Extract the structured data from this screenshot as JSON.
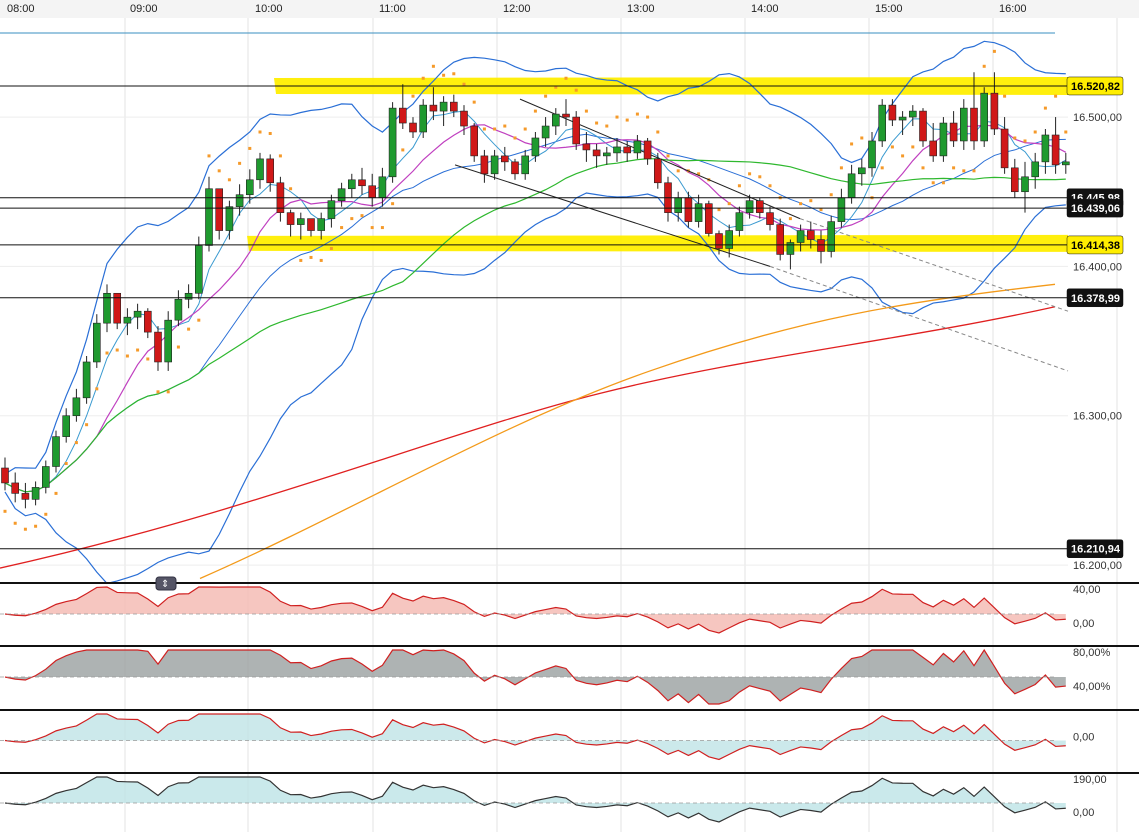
{
  "chart_data": [
    {
      "type": "candlestick",
      "x_ticks": [
        "08:00",
        "09:00",
        "10:00",
        "11:00",
        "12:00",
        "13:00",
        "14:00",
        "15:00",
        "16:00"
      ],
      "ylim": [
        16190,
        16565
      ],
      "y_ticks": [
        {
          "value": 16500,
          "label": "16.500,00"
        },
        {
          "value": 16400,
          "label": "16.400,00"
        },
        {
          "value": 16300,
          "label": "16.300,00"
        },
        {
          "value": 16200,
          "label": "16.200,00"
        }
      ],
      "level_badges": [
        {
          "value": 16520.82,
          "label": "16.520,82",
          "highlight": true
        },
        {
          "value": 16445.98,
          "label": "16.445,98",
          "highlight": false
        },
        {
          "value": 16439.06,
          "label": "16.439,06",
          "highlight": false
        },
        {
          "value": 16414.38,
          "label": "16.414,38",
          "highlight": true
        },
        {
          "value": 16378.99,
          "label": "16.378,99",
          "highlight": false
        },
        {
          "value": 16210.94,
          "label": "16.210,94",
          "highlight": false
        }
      ],
      "candles": [
        [
          16265,
          16272,
          16250,
          16255
        ],
        [
          16255,
          16262,
          16242,
          16248
        ],
        [
          16248,
          16255,
          16238,
          16244
        ],
        [
          16244,
          16256,
          16240,
          16252
        ],
        [
          16252,
          16270,
          16248,
          16266
        ],
        [
          16266,
          16290,
          16262,
          16286
        ],
        [
          16286,
          16305,
          16282,
          16300
        ],
        [
          16300,
          16318,
          16296,
          16312
        ],
        [
          16312,
          16340,
          16308,
          16336
        ],
        [
          16336,
          16368,
          16332,
          16362
        ],
        [
          16362,
          16388,
          16356,
          16382
        ],
        [
          16382,
          16380,
          16358,
          16362
        ],
        [
          16362,
          16372,
          16354,
          16366
        ],
        [
          16366,
          16375,
          16358,
          16370
        ],
        [
          16370,
          16372,
          16352,
          16356
        ],
        [
          16356,
          16360,
          16330,
          16336
        ],
        [
          16336,
          16370,
          16330,
          16364
        ],
        [
          16364,
          16384,
          16360,
          16378
        ],
        [
          16378,
          16388,
          16372,
          16382
        ],
        [
          16382,
          16420,
          16378,
          16414
        ],
        [
          16414,
          16460,
          16410,
          16452
        ],
        [
          16452,
          16450,
          16418,
          16424
        ],
        [
          16424,
          16444,
          16418,
          16440
        ],
        [
          16440,
          16455,
          16434,
          16448
        ],
        [
          16448,
          16465,
          16442,
          16458
        ],
        [
          16458,
          16476,
          16452,
          16472
        ],
        [
          16472,
          16475,
          16450,
          16456
        ],
        [
          16456,
          16460,
          16430,
          16436
        ],
        [
          16436,
          16438,
          16420,
          16428
        ],
        [
          16428,
          16436,
          16418,
          16432
        ],
        [
          16432,
          16430,
          16420,
          16424
        ],
        [
          16424,
          16436,
          16418,
          16432
        ],
        [
          16432,
          16448,
          16426,
          16444
        ],
        [
          16444,
          16456,
          16440,
          16452
        ],
        [
          16452,
          16462,
          16446,
          16458
        ],
        [
          16458,
          16466,
          16448,
          16454
        ],
        [
          16454,
          16462,
          16440,
          16446
        ],
        [
          16446,
          16466,
          16440,
          16460
        ],
        [
          16460,
          16510,
          16456,
          16506
        ],
        [
          16506,
          16522,
          16492,
          16496
        ],
        [
          16496,
          16500,
          16486,
          16490
        ],
        [
          16490,
          16512,
          16486,
          16508
        ],
        [
          16508,
          16520,
          16498,
          16504
        ],
        [
          16504,
          16514,
          16494,
          16510
        ],
        [
          16510,
          16515,
          16500,
          16504
        ],
        [
          16504,
          16508,
          16488,
          16494
        ],
        [
          16494,
          16496,
          16470,
          16474
        ],
        [
          16474,
          16478,
          16456,
          16462
        ],
        [
          16462,
          16478,
          16458,
          16474
        ],
        [
          16474,
          16480,
          16464,
          16470
        ],
        [
          16470,
          16472,
          16458,
          16462
        ],
        [
          16462,
          16478,
          16458,
          16474
        ],
        [
          16474,
          16490,
          16470,
          16486
        ],
        [
          16486,
          16500,
          16480,
          16494
        ],
        [
          16494,
          16506,
          16488,
          16502
        ],
        [
          16502,
          16512,
          16494,
          16500
        ],
        [
          16500,
          16504,
          16478,
          16482
        ],
        [
          16482,
          16490,
          16470,
          16478
        ],
        [
          16478,
          16482,
          16466,
          16474
        ],
        [
          16474,
          16480,
          16468,
          16476
        ],
        [
          16476,
          16486,
          16470,
          16480
        ],
        [
          16480,
          16484,
          16470,
          16476
        ],
        [
          16476,
          16488,
          16472,
          16484
        ],
        [
          16484,
          16486,
          16468,
          16472
        ],
        [
          16472,
          16476,
          16452,
          16456
        ],
        [
          16456,
          16460,
          16430,
          16436
        ],
        [
          16436,
          16450,
          16430,
          16446
        ],
        [
          16446,
          16450,
          16426,
          16430
        ],
        [
          16430,
          16448,
          16426,
          16442
        ],
        [
          16442,
          16444,
          16420,
          16422
        ],
        [
          16422,
          16424,
          16408,
          16412
        ],
        [
          16412,
          16428,
          16406,
          16424
        ],
        [
          16424,
          16440,
          16420,
          16436
        ],
        [
          16436,
          16448,
          16432,
          16444
        ],
        [
          16444,
          16446,
          16432,
          16436
        ],
        [
          16436,
          16440,
          16424,
          16428
        ],
        [
          16428,
          16432,
          16404,
          16408
        ],
        [
          16408,
          16418,
          16398,
          16416
        ],
        [
          16416,
          16428,
          16410,
          16424
        ],
        [
          16424,
          16430,
          16412,
          16418
        ],
        [
          16418,
          16424,
          16402,
          16410
        ],
        [
          16410,
          16434,
          16406,
          16430
        ],
        [
          16430,
          16452,
          16426,
          16446
        ],
        [
          16446,
          16468,
          16442,
          16462
        ],
        [
          16462,
          16472,
          16454,
          16466
        ],
        [
          16466,
          16490,
          16460,
          16484
        ],
        [
          16484,
          16512,
          16480,
          16508
        ],
        [
          16508,
          16512,
          16494,
          16498
        ],
        [
          16498,
          16504,
          16488,
          16500
        ],
        [
          16500,
          16508,
          16494,
          16504
        ],
        [
          16504,
          16506,
          16480,
          16484
        ],
        [
          16484,
          16496,
          16470,
          16474
        ],
        [
          16474,
          16500,
          16470,
          16496
        ],
        [
          16496,
          16504,
          16480,
          16484
        ],
        [
          16484,
          16512,
          16478,
          16506
        ],
        [
          16506,
          16530,
          16478,
          16484
        ],
        [
          16484,
          16520,
          16480,
          16516
        ],
        [
          16516,
          16530,
          16488,
          16492
        ],
        [
          16492,
          16500,
          16462,
          16466
        ],
        [
          16466,
          16472,
          16446,
          16450
        ],
        [
          16450,
          16470,
          16436,
          16460
        ],
        [
          16460,
          16476,
          16452,
          16470
        ],
        [
          16470,
          16492,
          16462,
          16488
        ],
        [
          16488,
          16500,
          16462,
          16468
        ],
        [
          16468,
          16476,
          16462,
          16470
        ]
      ],
      "title": "",
      "xlabel": "",
      "ylabel": ""
    },
    {
      "type": "area",
      "name": "",
      "y_ticks": [
        {
          "value": 40,
          "label": "40,00"
        },
        {
          "value": 0,
          "label": "0,00"
        }
      ]
    },
    {
      "type": "line",
      "name": "",
      "y_ticks": [
        {
          "value": 80,
          "label": "80,00%"
        },
        {
          "value": 40,
          "label": "40,00%"
        }
      ]
    },
    {
      "type": "area",
      "name": "",
      "y_ticks": [
        {
          "value": 0,
          "label": "0,00"
        }
      ]
    },
    {
      "type": "area",
      "name": "",
      "y_ticks": [
        {
          "value": 190,
          "label": "190,00"
        },
        {
          "value": 0,
          "label": "0,00"
        }
      ]
    }
  ],
  "colors": {
    "up": "#1f9a2f",
    "down": "#d01818",
    "highlight": "#ffee00",
    "badge_dark": "#111111",
    "badge_light": "#ffffff"
  }
}
